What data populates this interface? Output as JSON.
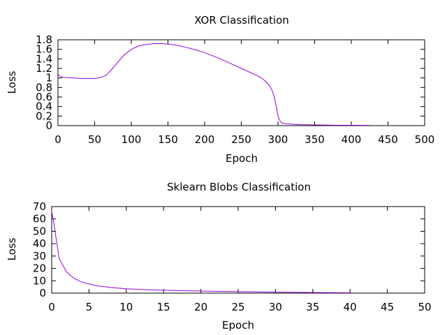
{
  "chart_data": [
    {
      "type": "line",
      "title": "XOR Classification",
      "xlabel": "Epoch",
      "ylabel": "Loss",
      "xlim": [
        0,
        500
      ],
      "ylim": [
        0,
        1.8
      ],
      "xticks": [
        "0",
        "50",
        "100",
        "150",
        "200",
        "250",
        "300",
        "350",
        "400",
        "450",
        "500"
      ],
      "yticks": [
        "0",
        "0.2",
        "0.4",
        "0.6",
        "0.8",
        "1",
        "1.2",
        "1.4",
        "1.6",
        "1.8"
      ],
      "grid": false,
      "color": "#9400d3",
      "series": [
        {
          "x": [
            0,
            5,
            10,
            20,
            30,
            40,
            50,
            55,
            60,
            65,
            70,
            80,
            90,
            100,
            110,
            120,
            130,
            140,
            150,
            160,
            170,
            180,
            190,
            200,
            210,
            220,
            230,
            240,
            250,
            260,
            270,
            275,
            280,
            285,
            290,
            293,
            295,
            297,
            299,
            300,
            302,
            305,
            310,
            320,
            330,
            350,
            375,
            400,
            425
          ],
          "y": [
            1.07,
            1.02,
            1.01,
            1.0,
            0.99,
            0.99,
            0.99,
            1.0,
            1.02,
            1.05,
            1.12,
            1.3,
            1.48,
            1.6,
            1.67,
            1.7,
            1.72,
            1.72,
            1.71,
            1.69,
            1.66,
            1.62,
            1.58,
            1.53,
            1.47,
            1.41,
            1.34,
            1.27,
            1.2,
            1.13,
            1.06,
            1.02,
            0.97,
            0.9,
            0.8,
            0.7,
            0.6,
            0.45,
            0.3,
            0.2,
            0.12,
            0.06,
            0.04,
            0.03,
            0.02,
            0.015,
            0.01,
            0.008,
            0.005
          ]
        }
      ]
    },
    {
      "type": "line",
      "title": "Sklearn Blobs Classification",
      "xlabel": "Epoch",
      "ylabel": "Loss",
      "xlim": [
        0,
        50
      ],
      "ylim": [
        0,
        70
      ],
      "xticks": [
        "0",
        "5",
        "10",
        "15",
        "20",
        "25",
        "30",
        "35",
        "40",
        "45",
        "50"
      ],
      "yticks": [
        "0",
        "10",
        "20",
        "30",
        "40",
        "50",
        "60",
        "70"
      ],
      "grid": false,
      "color": "#9400d3",
      "series": [
        {
          "x": [
            0,
            0.2,
            0.5,
            1,
            2,
            3,
            4,
            5,
            6,
            8,
            10,
            12,
            15,
            20,
            25,
            30,
            35,
            40
          ],
          "y": [
            66,
            60,
            48,
            28,
            17,
            12,
            9,
            7.5,
            6,
            4.5,
            3.5,
            3,
            2.3,
            1.7,
            1.2,
            0.8,
            0.5,
            0.3
          ]
        }
      ]
    }
  ]
}
